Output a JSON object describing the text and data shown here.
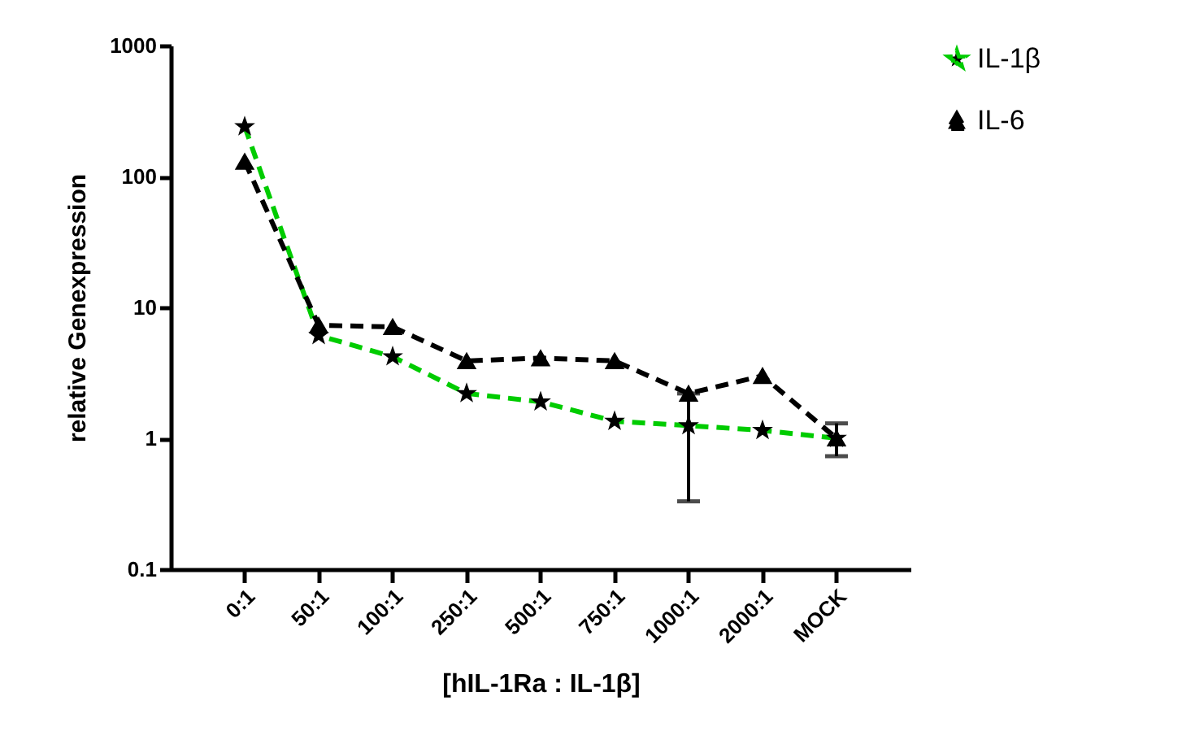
{
  "chart_data": {
    "type": "line",
    "xlabel": "[hIL-1Ra : IL-1β]",
    "ylabel": "relative Genexpression",
    "categories": [
      "0:1",
      "50:1",
      "100:1",
      "250:1",
      "500:1",
      "750:1",
      "1000:1",
      "2000:1",
      "MOCK"
    ],
    "series": [
      {
        "name": "IL-1β",
        "color": "#00cc00",
        "marker": "star",
        "line_style": "dashed",
        "values": [
          240,
          6.1,
          4.2,
          2.2,
          1.9,
          1.35,
          1.25,
          1.15,
          1.0
        ]
      },
      {
        "name": "IL-6",
        "color": "#000000",
        "marker": "triangle",
        "line_style": "dashed",
        "values": [
          130,
          7.3,
          7.1,
          3.9,
          4.1,
          3.9,
          2.2,
          3.0,
          1.0
        ],
        "errors": [
          null,
          null,
          null,
          null,
          null,
          null,
          [
            0.33,
            2.2
          ],
          null,
          [
            0.73,
            1.3
          ]
        ]
      }
    ],
    "log": true,
    "ylim": [
      0.1,
      1000
    ],
    "yticks": [
      0.1,
      1,
      10,
      100,
      1000
    ],
    "grid": false,
    "legend": "top right"
  }
}
